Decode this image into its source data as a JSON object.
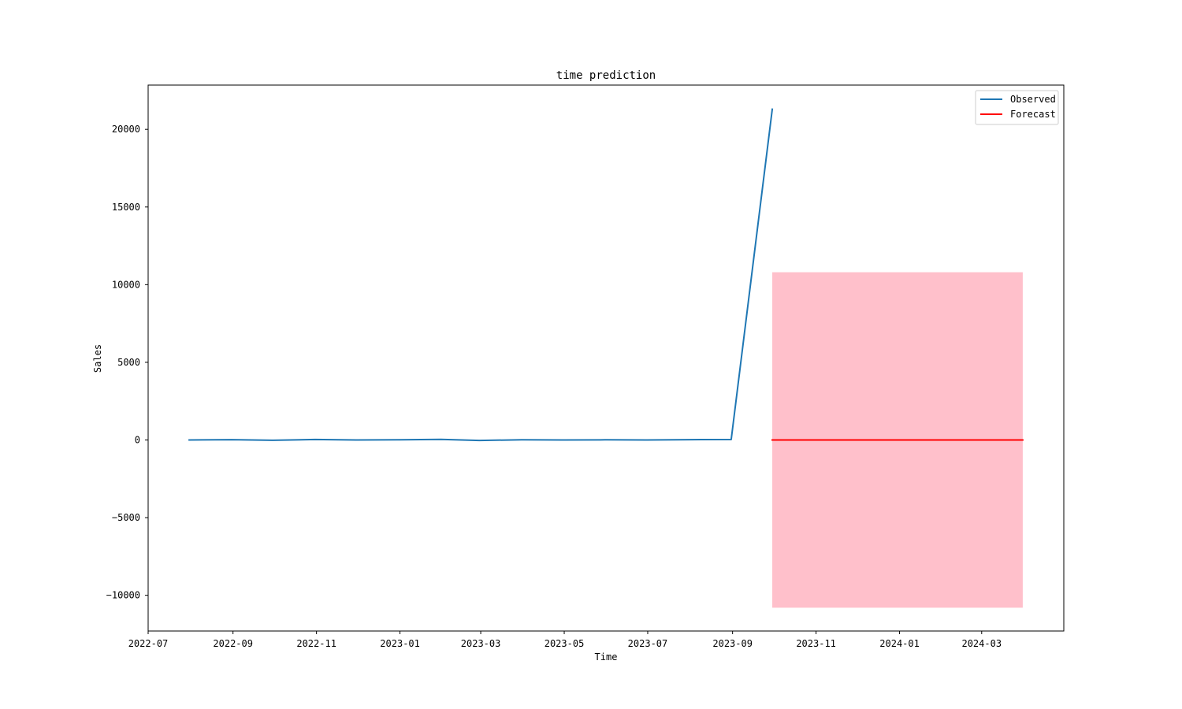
{
  "chart_data": {
    "type": "line",
    "title": "time prediction",
    "xlabel": "Time",
    "ylabel": "Sales",
    "grid": false,
    "legend_position": "top-right",
    "xlim": [
      "2022-07-01",
      "2024-04-30"
    ],
    "ylim": [
      -12300,
      22850
    ],
    "x_ticks": [
      "2022-07-01",
      "2022-09-01",
      "2022-11-01",
      "2023-01-01",
      "2023-03-01",
      "2023-05-01",
      "2023-07-01",
      "2023-09-01",
      "2023-11-01",
      "2024-01-01",
      "2024-03-01"
    ],
    "x_tick_labels": [
      "2022-07",
      "2022-09",
      "2022-11",
      "2023-01",
      "2023-03",
      "2023-05",
      "2023-07",
      "2023-09",
      "2023-11",
      "2024-01",
      "2024-03"
    ],
    "y_ticks": [
      -10000,
      -5000,
      0,
      5000,
      10000,
      15000,
      20000
    ],
    "y_tick_labels": [
      "−10000",
      "−5000",
      "0",
      "5000",
      "10000",
      "15000",
      "20000"
    ],
    "series": [
      {
        "name": "Observed",
        "color": "#1f77b4",
        "x": [
          "2022-07-31",
          "2022-08-31",
          "2022-09-30",
          "2022-10-31",
          "2022-11-30",
          "2022-12-31",
          "2023-01-31",
          "2023-02-28",
          "2023-03-31",
          "2023-04-30",
          "2023-05-31",
          "2023-06-30",
          "2023-07-31",
          "2023-08-31",
          "2023-09-30"
        ],
        "values": [
          0,
          20,
          -20,
          30,
          0,
          10,
          40,
          -30,
          10,
          0,
          10,
          0,
          20,
          30,
          21300
        ]
      },
      {
        "name": "Forecast",
        "color": "#ff0000",
        "x": [
          "2023-09-30",
          "2023-10-31",
          "2023-11-30",
          "2023-12-31",
          "2024-01-31",
          "2024-02-29",
          "2024-03-31"
        ],
        "values": [
          0,
          0,
          0,
          0,
          0,
          0,
          0
        ]
      }
    ],
    "confidence_band": {
      "color": "#ffc0cb",
      "x_start": "2023-09-30",
      "x_end": "2024-03-31",
      "lower": -10800,
      "upper": 10800
    }
  }
}
